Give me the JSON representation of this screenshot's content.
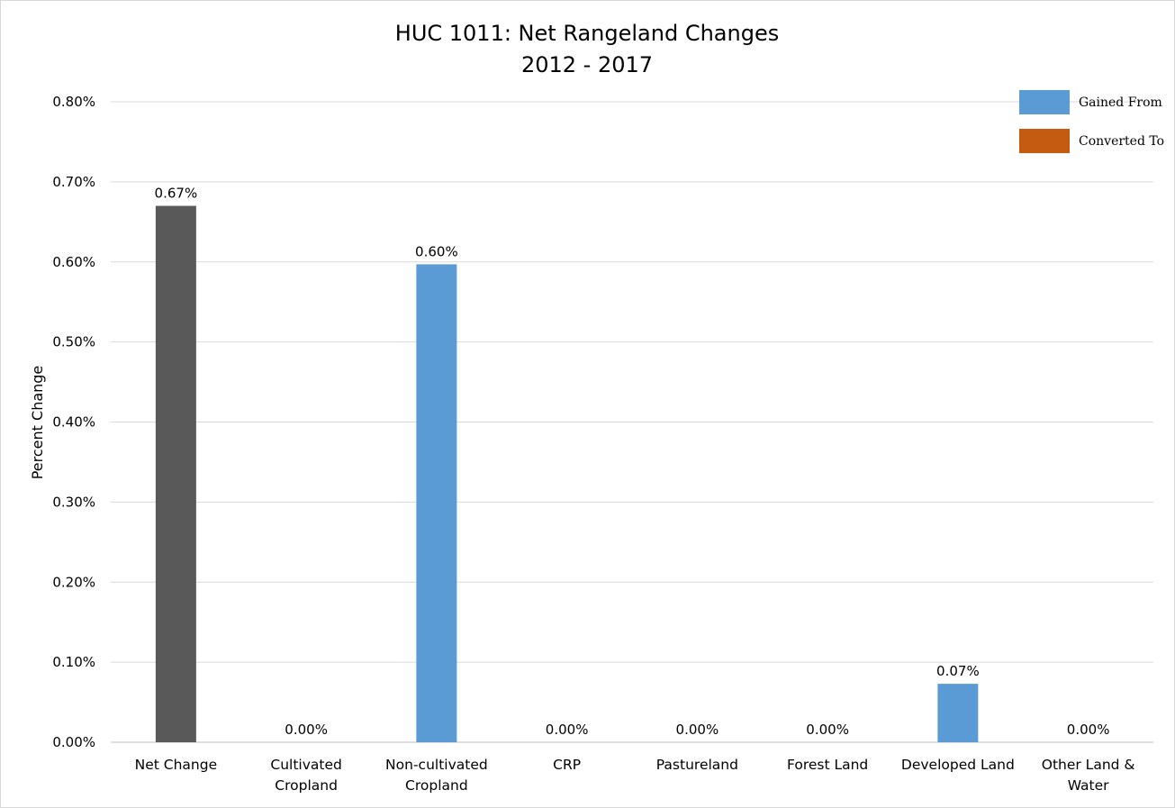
{
  "chart_data": {
    "type": "bar",
    "title": "HUC 1011: Net Rangeland Changes",
    "subtitle": "2012 - 2017",
    "xlabel": "",
    "ylabel": "Percent Change",
    "ylim": [
      0,
      0.8
    ],
    "y_ticks": [
      "0.00%",
      "0.10%",
      "0.20%",
      "0.30%",
      "0.40%",
      "0.50%",
      "0.60%",
      "0.70%",
      "0.80%"
    ],
    "grid": true,
    "legend_position": "top-right",
    "legend": [
      {
        "name": "Gained From",
        "color": "#5b9bd5"
      },
      {
        "name": "Converted To",
        "color": "#c55a11"
      }
    ],
    "categories": [
      [
        "Net Change"
      ],
      [
        "Cultivated",
        "Cropland"
      ],
      [
        "Non-cultivated",
        "Cropland"
      ],
      [
        "CRP"
      ],
      [
        "Pastureland"
      ],
      [
        "Forest Land"
      ],
      [
        "Developed Land"
      ],
      [
        "Other Land &",
        "Water"
      ]
    ],
    "values": [
      0.67,
      0.0,
      0.597,
      0.0,
      0.0,
      0.0,
      0.073,
      0.0
    ],
    "data_labels": [
      "0.67%",
      "0.00%",
      "0.60%",
      "0.00%",
      "0.00%",
      "0.00%",
      "0.07%",
      "0.00%"
    ],
    "bar_colors": [
      "#595959",
      "#5b9bd5",
      "#5b9bd5",
      "#5b9bd5",
      "#5b9bd5",
      "#5b9bd5",
      "#5b9bd5",
      "#5b9bd5"
    ]
  }
}
